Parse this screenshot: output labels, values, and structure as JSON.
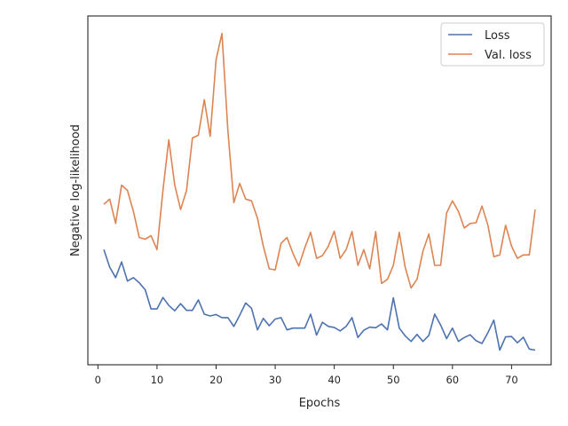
{
  "chart_data": {
    "type": "line",
    "xlabel": "Epochs",
    "ylabel": "Negative log-likelihood",
    "xlim": [
      -1.7,
      76.7
    ],
    "ylim": [
      0,
      100
    ],
    "xticks": [
      0,
      10,
      20,
      30,
      40,
      50,
      60,
      70
    ],
    "grid": false,
    "legend_position": "top-right",
    "series": [
      {
        "name": "Loss",
        "color": "#4c72b0",
        "x": [
          1,
          2,
          3,
          4,
          5,
          6,
          7,
          8,
          9,
          10,
          11,
          12,
          13,
          14,
          15,
          16,
          17,
          18,
          19,
          20,
          21,
          22,
          23,
          24,
          25,
          26,
          27,
          28,
          29,
          30,
          31,
          32,
          33,
          34,
          35,
          36,
          37,
          38,
          39,
          40,
          41,
          42,
          43,
          44,
          45,
          46,
          47,
          48,
          49,
          50,
          51,
          52,
          53,
          54,
          55,
          56,
          57,
          58,
          59,
          60,
          61,
          62,
          63,
          64,
          65,
          66,
          67,
          68,
          69,
          70,
          71,
          72,
          73,
          74
        ],
        "values": [
          33,
          28,
          25,
          29.5,
          24,
          25,
          23.5,
          21.5,
          16,
          16,
          19.3,
          17,
          15.5,
          17.5,
          15.6,
          15.6,
          18.6,
          14.5,
          14,
          14.4,
          13.5,
          13.5,
          11,
          14.2,
          17.7,
          16.2,
          10,
          13.3,
          11.2,
          13.1,
          13.5,
          10,
          10.5,
          10.5,
          10.5,
          14.5,
          8.5,
          12.2,
          11,
          10.7,
          9.7,
          11,
          13.5,
          7.8,
          9.9,
          10.8,
          10.6,
          11.7,
          10,
          19.2,
          10.5,
          8.3,
          6.7,
          8.7,
          6.7,
          8.4,
          14.5,
          11.4,
          7.5,
          10.5,
          6.7,
          7.8,
          8.6,
          6.9,
          6.1,
          9.2,
          12.8,
          4.2,
          8,
          8.1,
          6.3,
          7.9,
          4.5,
          4.2
        ]
      },
      {
        "name": "Val. loss",
        "color": "#dd8452",
        "x": [
          1,
          2,
          3,
          4,
          5,
          6,
          7,
          8,
          9,
          10,
          11,
          12,
          13,
          14,
          15,
          16,
          17,
          18,
          19,
          20,
          21,
          22,
          23,
          24,
          25,
          26,
          27,
          28,
          29,
          30,
          31,
          32,
          33,
          34,
          35,
          36,
          37,
          38,
          39,
          40,
          41,
          42,
          43,
          44,
          45,
          46,
          47,
          48,
          49,
          50,
          51,
          52,
          53,
          54,
          55,
          56,
          57,
          58,
          59,
          60,
          61,
          62,
          63,
          64,
          65,
          66,
          67,
          68,
          69,
          70,
          71,
          72,
          73,
          74
        ],
        "values": [
          46,
          47.5,
          40.5,
          51.5,
          50,
          44,
          36.5,
          36,
          37,
          33,
          50,
          64.5,
          51.5,
          44.5,
          50,
          65,
          65.8,
          76,
          65.5,
          87.5,
          95,
          67,
          46.5,
          52,
          47.5,
          47,
          42,
          34,
          27.5,
          27.2,
          34.8,
          36.5,
          32,
          28.3,
          33.5,
          38,
          30.5,
          31.3,
          34,
          38.3,
          30.5,
          33,
          38.2,
          28.5,
          33,
          27.5,
          38.2,
          23.3,
          24.5,
          28.5,
          38,
          28,
          22,
          24.5,
          32.5,
          37.5,
          28.5,
          28.5,
          43.5,
          47,
          44,
          39.2,
          40.5,
          40.7,
          45.5,
          40,
          31,
          31.5,
          40,
          34,
          30.5,
          31.5,
          31.5,
          44.5
        ]
      }
    ]
  }
}
